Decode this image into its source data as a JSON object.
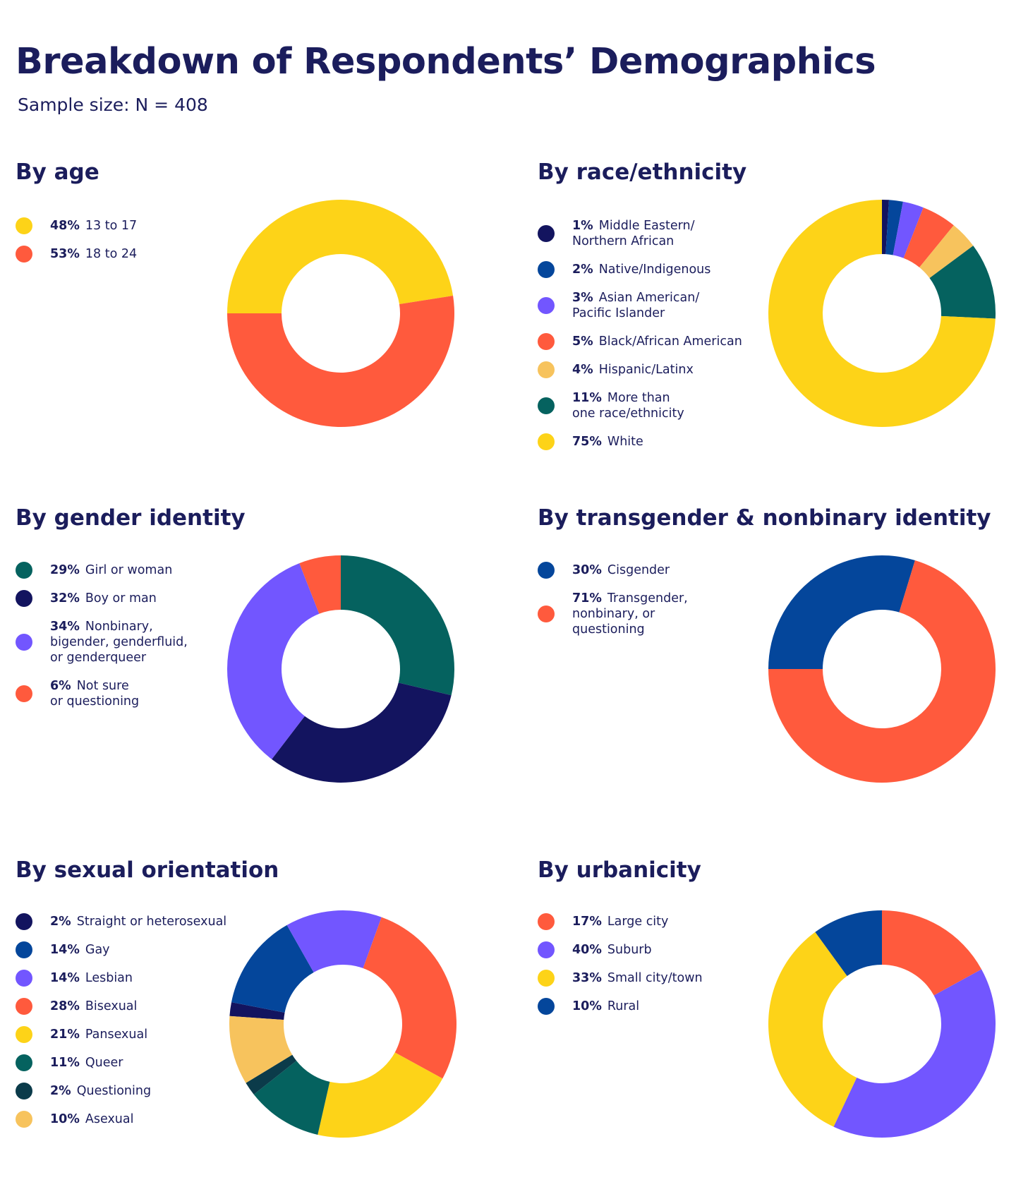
{
  "title": "Breakdown of Respondents’ Demographics",
  "subtitle": "Sample size: N = 408",
  "chart_data": [
    {
      "type": "pie",
      "title": "By age",
      "start_angle": 180,
      "categories": [
        "13 to 17",
        "18 to 24"
      ],
      "values": [
        48,
        53
      ],
      "labels": [
        "48%",
        "53%"
      ],
      "colors": [
        "#FDD318",
        "#FF5A3D"
      ]
    },
    {
      "type": "pie",
      "title": "By race/ethnicity",
      "start_angle": 270,
      "categories": [
        "Middle Eastern/\nNorthern African",
        "Native/Indigenous",
        "Asian American/\nPacific Islander",
        "Black/African American",
        "Hispanic/Latinx",
        "More than\none race/ethnicity",
        "White"
      ],
      "values": [
        1,
        2,
        3,
        5,
        4,
        11,
        75
      ],
      "labels": [
        "1%",
        "2%",
        "3%",
        "5%",
        "4%",
        "11%",
        "75%"
      ],
      "colors": [
        "#13145F",
        "#04469B",
        "#7256FF",
        "#FF5A3D",
        "#F7C35D",
        "#05625F",
        "#FDD318"
      ]
    },
    {
      "type": "pie",
      "title": "By gender identity",
      "start_angle": 270,
      "categories": [
        "Girl or woman",
        "Boy or man",
        "Nonbinary,\nbigender, genderfluid,\nor genderqueer",
        "Not sure\nor questioning"
      ],
      "values": [
        29,
        32,
        34,
        6
      ],
      "labels": [
        "29%",
        "32%",
        "34%",
        "6%"
      ],
      "colors": [
        "#05625F",
        "#13145F",
        "#7256FF",
        "#FF5A3D"
      ]
    },
    {
      "type": "pie",
      "title": "By transgender & nonbinary identity",
      "start_angle": 180,
      "categories": [
        "Cisgender",
        "Transgender,\nnonbinary, or\nquestioning"
      ],
      "values": [
        30,
        71
      ],
      "labels": [
        "30%",
        "71%"
      ],
      "colors": [
        "#04469B",
        "#FF5A3D"
      ]
    },
    {
      "type": "pie",
      "title": "By sexual orientation",
      "start_angle": 184,
      "categories": [
        "Straight or heterosexual",
        "Gay",
        "Lesbian",
        "Bisexual",
        "Pansexual",
        "Queer",
        "Questioning",
        "Asexual"
      ],
      "values": [
        2,
        14,
        14,
        28,
        21,
        11,
        2,
        10
      ],
      "labels": [
        "2%",
        "14%",
        "14%",
        "28%",
        "21%",
        "11%",
        "2%",
        "10%"
      ],
      "colors": [
        "#13145F",
        "#04469B",
        "#7256FF",
        "#FF5A3D",
        "#FDD318",
        "#05625F",
        "#0B3B4A",
        "#F7C35D"
      ]
    },
    {
      "type": "pie",
      "title": "By urbanicity",
      "start_angle": 270,
      "categories": [
        "Large city",
        "Suburb",
        "Small city/town",
        "Rural"
      ],
      "values": [
        17,
        40,
        33,
        10
      ],
      "labels": [
        "17%",
        "40%",
        "33%",
        "10%"
      ],
      "colors": [
        "#FF5A3D",
        "#7256FF",
        "#FDD318",
        "#04469B"
      ]
    }
  ]
}
